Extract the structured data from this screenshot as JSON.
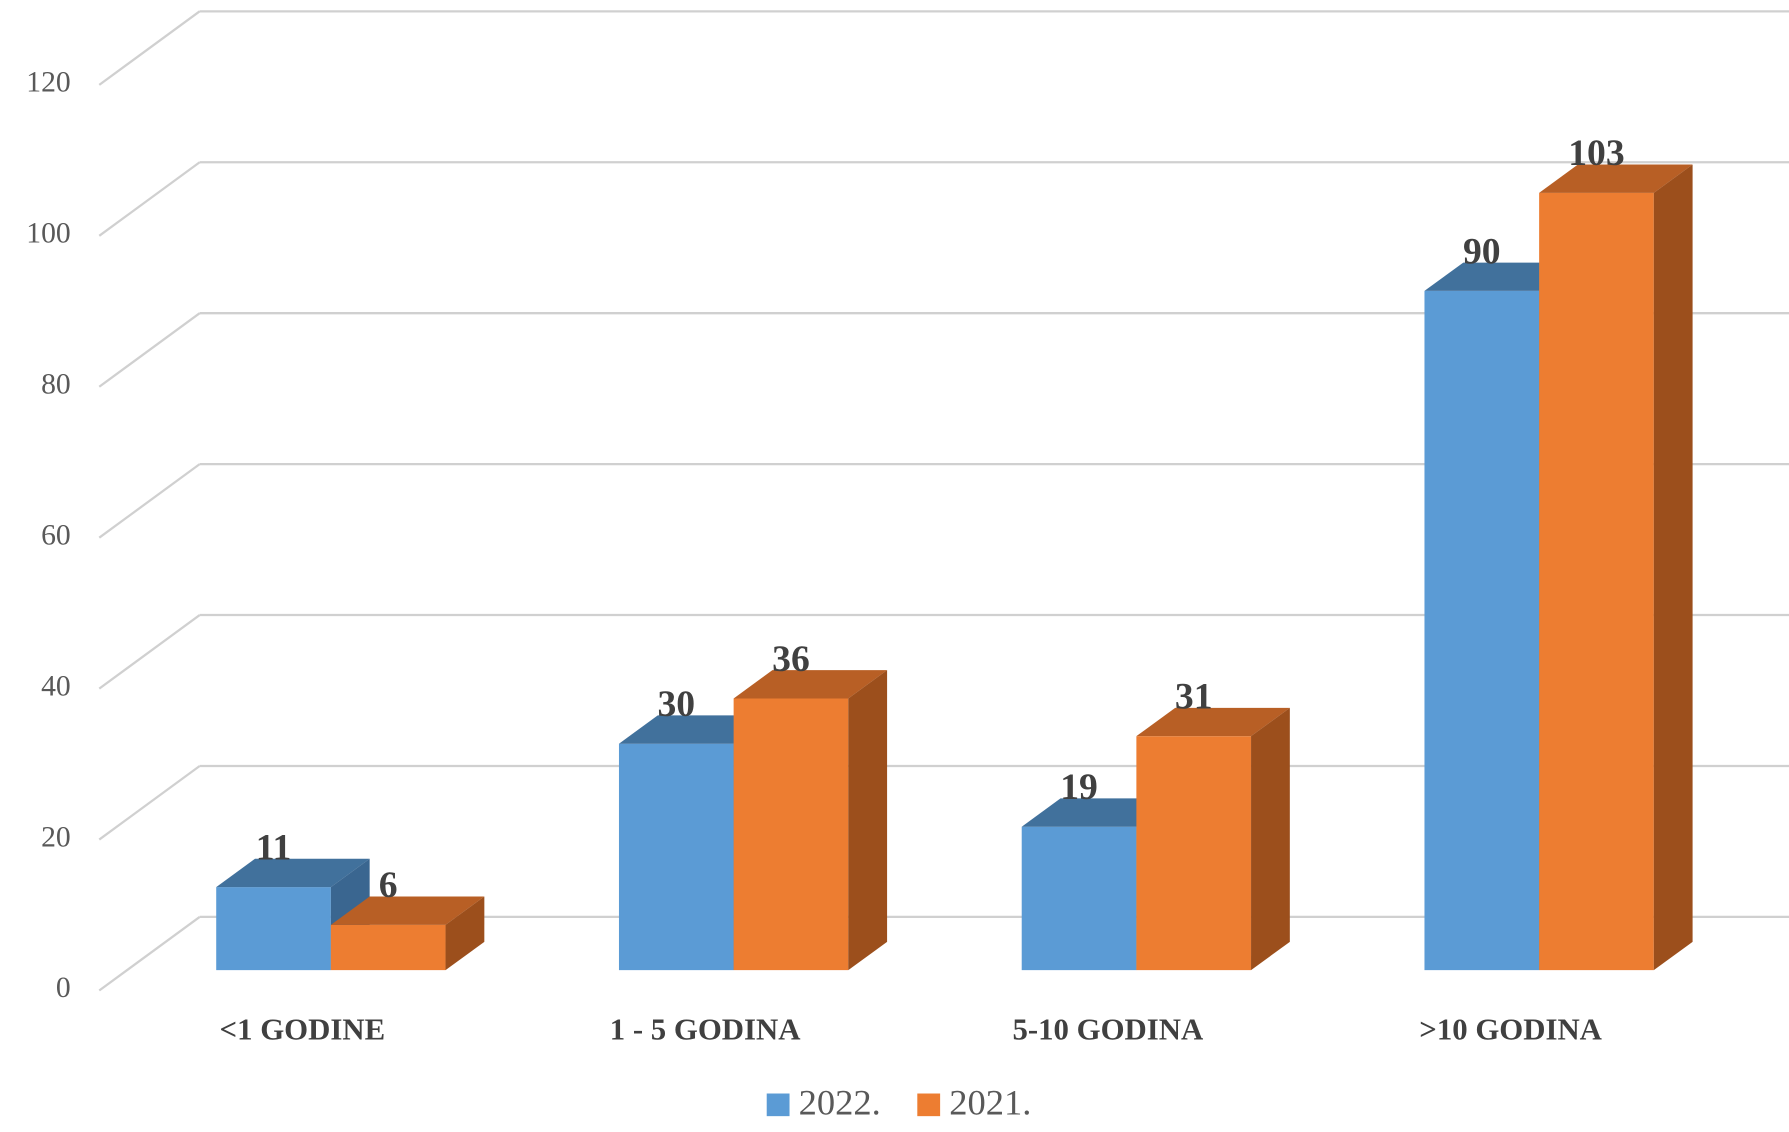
{
  "chart_data": {
    "type": "bar3d",
    "categories": [
      "<1 GODINE",
      "1 - 5 GODINA",
      "5-10 GODINA",
      ">10 GODINA"
    ],
    "series": [
      {
        "name": "2022.",
        "color": "#5b9bd5",
        "top": "#41719c",
        "side": "#3a6690",
        "values": [
          11,
          30,
          19,
          90
        ]
      },
      {
        "name": "2021.",
        "color": "#ed7d31",
        "top": "#b85f25",
        "side": "#9c4f1c",
        "values": [
          6,
          36,
          31,
          103
        ]
      }
    ],
    "ylim": [
      0,
      120
    ],
    "yticks": [
      0,
      20,
      40,
      60,
      80,
      100,
      120
    ],
    "grid": true,
    "legend": "bottom"
  }
}
